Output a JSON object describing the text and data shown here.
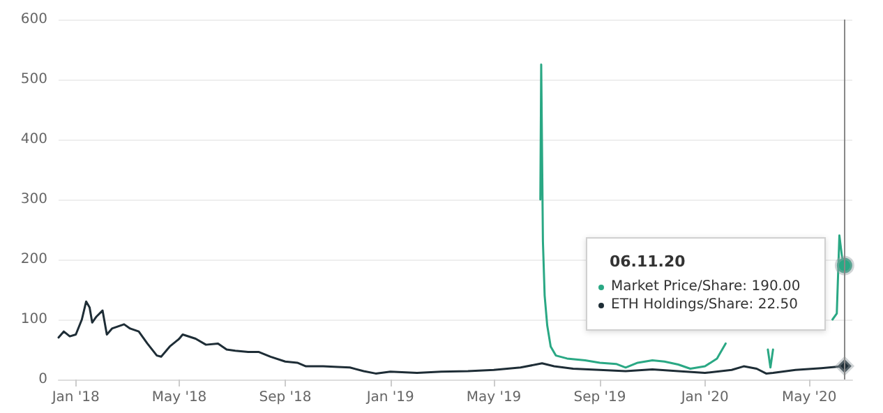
{
  "chart_data": {
    "type": "line",
    "x": [
      "2017-12-12",
      "2017-12-18",
      "2017-12-25",
      "2018-01-01",
      "2018-01-08",
      "2018-01-13",
      "2018-01-17",
      "2018-01-20",
      "2018-01-25",
      "2018-02-01",
      "2018-02-06",
      "2018-02-12",
      "2018-02-26",
      "2018-03-05",
      "2018-03-15",
      "2018-03-25",
      "2018-04-05",
      "2018-04-10",
      "2018-04-20",
      "2018-05-01",
      "2018-05-05",
      "2018-05-20",
      "2018-06-01",
      "2018-06-15",
      "2018-06-25",
      "2018-07-05",
      "2018-07-20",
      "2018-08-01",
      "2018-08-15",
      "2018-09-01",
      "2018-09-15",
      "2018-09-25",
      "2018-10-15",
      "2018-11-01",
      "2018-11-15",
      "2018-12-01",
      "2018-12-15",
      "2019-01-01",
      "2019-02-01",
      "2019-03-01",
      "2019-04-01",
      "2019-05-01",
      "2019-06-01",
      "2019-06-26",
      "2019-07-10",
      "2019-08-01",
      "2019-09-01",
      "2019-10-01",
      "2019-11-01",
      "2019-12-01",
      "2020-01-01",
      "2020-02-01",
      "2020-02-15",
      "2020-03-01",
      "2020-03-12",
      "2020-03-20",
      "2020-04-15",
      "2020-05-15",
      "2020-06-11"
    ],
    "series": [
      {
        "color": "#2aa884",
        "x": [
          "2019-06-24",
          "2019-06-25",
          "2019-06-27",
          "2019-06-29",
          "2019-07-02",
          "2019-07-06",
          "2019-07-12",
          "2019-07-25",
          "2019-08-15",
          "2019-09-01",
          "2019-09-20",
          "2019-10-01",
          "2019-10-15",
          "2019-11-01",
          "2019-11-15",
          "2019-12-01",
          "2019-12-15",
          "2020-01-01",
          "2020-01-15",
          "2020-01-25",
          "2020-02-05",
          "2020-03-10",
          "2020-03-14",
          "2020-03-17",
          "2020-03-20",
          "2020-03-25",
          "2020-05-25",
          "2020-05-28",
          "2020-06-02",
          "2020-06-05",
          "2020-06-08",
          "2020-06-11"
        ],
        "values": [
          300,
          525,
          230,
          140,
          90,
          55,
          40,
          35,
          32,
          28,
          26,
          20,
          28,
          32,
          30,
          25,
          18,
          22,
          35,
          60,
          null,
          null,
          50,
          20,
          50,
          null,
          null,
          100,
          110,
          240,
          205,
          190
        ]
      },
      {
        "color": "#1e2d36",
        "values": [
          70,
          80,
          72,
          75,
          100,
          130,
          120,
          95,
          105,
          115,
          75,
          85,
          92,
          85,
          80,
          60,
          40,
          38,
          55,
          68,
          75,
          68,
          58,
          60,
          50,
          48,
          46,
          46,
          38,
          30,
          28,
          22,
          22,
          21,
          20,
          14,
          10,
          13,
          11,
          13,
          14,
          16,
          20,
          27,
          22,
          18,
          16,
          14,
          17,
          14,
          11,
          16,
          22,
          18,
          10,
          11,
          16,
          19,
          22.5
        ]
      }
    ],
    "xlim": [
      "2017-12-12",
      "2020-06-20"
    ],
    "xticks": [
      {
        "value": "2018-01-01",
        "label": "Jan '18"
      },
      {
        "value": "2018-05-01",
        "label": "May '18"
      },
      {
        "value": "2018-09-01",
        "label": "Sep '18"
      },
      {
        "value": "2019-01-01",
        "label": "Jan '19"
      },
      {
        "value": "2019-05-01",
        "label": "May '19"
      },
      {
        "value": "2019-09-01",
        "label": "Sep '19"
      },
      {
        "value": "2020-01-01",
        "label": "Jan '20"
      },
      {
        "value": "2020-05-01",
        "label": "May '20"
      }
    ],
    "ylim": [
      0,
      600
    ],
    "yticks": [
      0,
      100,
      200,
      300,
      400,
      500,
      600
    ],
    "grid": "y",
    "marker": "none",
    "line_style": "solid",
    "ref_lines": [
      {
        "axis": "x",
        "value": "2020-06-11",
        "color": "#888888"
      }
    ],
    "annotations": [
      "06.11.20",
      "Market Price/Share: 190.00",
      "ETH Holdings/Share: 22.50"
    ]
  }
}
